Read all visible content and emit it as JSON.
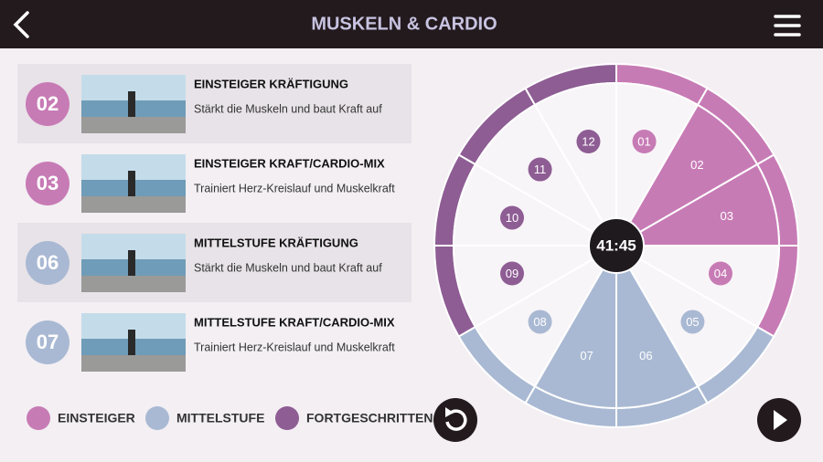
{
  "header": {
    "title": "MUSKELN & CARDIO"
  },
  "list": {
    "items": [
      {
        "number": "02",
        "title": "EINSTEIGER KRÄFTIGUNG",
        "subtitle": "Stärkt die Muskeln und baut Kraft auf",
        "color": "#c77bb5",
        "highlight": true
      },
      {
        "number": "03",
        "title": "EINSTEIGER KRAFT/CARDIO-MIX",
        "subtitle": "Trainiert Herz-Kreislauf und Muskelkraft",
        "color": "#c77bb5",
        "highlight": false
      },
      {
        "number": "06",
        "title": "MITTELSTUFE KRÄFTIGUNG",
        "subtitle": "Stärkt die Muskeln und baut Kraft auf",
        "color": "#a9b9d3",
        "highlight": true
      },
      {
        "number": "07",
        "title": "MITTELSTUFE KRAFT/CARDIO-MIX",
        "subtitle": "Trainiert Herz-Kreislauf und Muskelkraft",
        "color": "#a9b9d3",
        "highlight": false
      }
    ]
  },
  "legend": [
    {
      "label": "EINSTEIGER",
      "color": "#c77bb5"
    },
    {
      "label": "MITTELSTUFE",
      "color": "#a9b9d3"
    },
    {
      "label": "FORTGESCHRITTEN",
      "color": "#8e5d94"
    }
  ],
  "wheel": {
    "time": "41:45",
    "segments": [
      {
        "number": "01",
        "color": "#c77bb5",
        "selected": false
      },
      {
        "number": "02",
        "color": "#c77bb5",
        "selected": true
      },
      {
        "number": "03",
        "color": "#c77bb5",
        "selected": true
      },
      {
        "number": "04",
        "color": "#c77bb5",
        "selected": false
      },
      {
        "number": "05",
        "color": "#a9b9d3",
        "selected": false
      },
      {
        "number": "06",
        "color": "#a9b9d3",
        "selected": true
      },
      {
        "number": "07",
        "color": "#a9b9d3",
        "selected": true
      },
      {
        "number": "08",
        "color": "#a9b9d3",
        "selected": false
      },
      {
        "number": "09",
        "color": "#8e5d94",
        "selected": false
      },
      {
        "number": "10",
        "color": "#8e5d94",
        "selected": false
      },
      {
        "number": "11",
        "color": "#8e5d94",
        "selected": false
      },
      {
        "number": "12",
        "color": "#8e5d94",
        "selected": false
      }
    ]
  }
}
